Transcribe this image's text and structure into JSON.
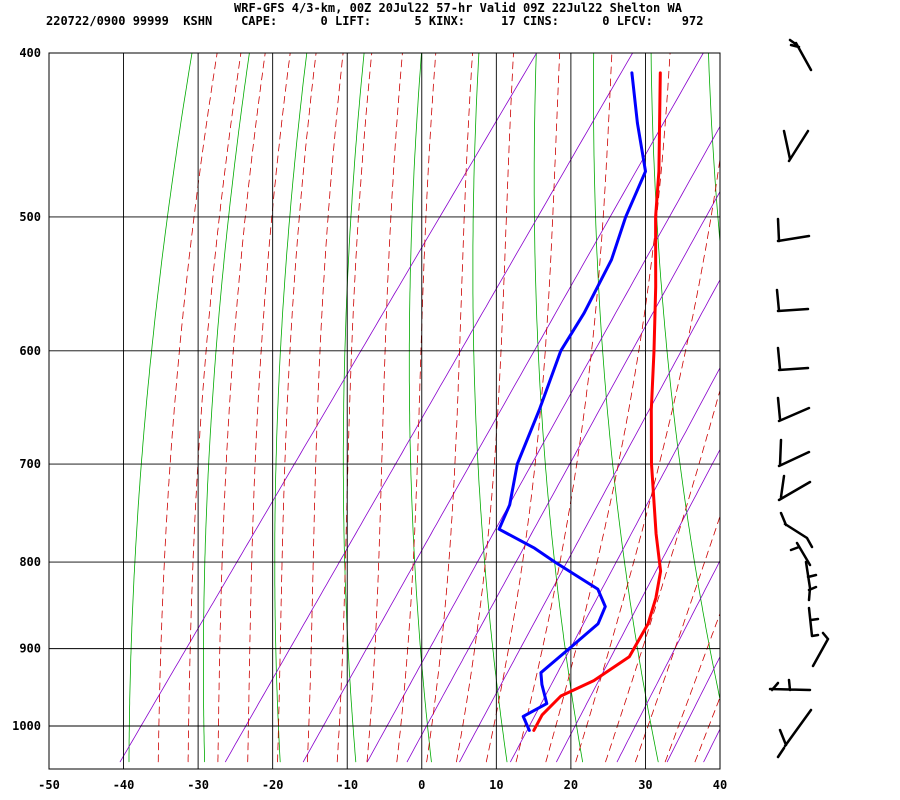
{
  "header": {
    "title": "WRF-GFS 4/3-km, 00Z 20Jul22 57-hr Valid 09Z 22Jul22 Shelton WA",
    "info": "220722/0900 99999  KSHN    CAPE:      0 LIFT:      5 KINX:     17 CINS:      0 LFCV:    972"
  },
  "chart_data": {
    "type": "line",
    "subtype": "skew-T log-P sounding",
    "title": "WRF-GFS 4/3-km, 00Z 20Jul22 57-hr Valid 09Z 22Jul22 Shelton WA",
    "station": "KSHN",
    "indices": {
      "CAPE": 0,
      "LIFT": 5,
      "KINX": 17,
      "CINS": 0,
      "LFCV": 972
    },
    "xlabel": "",
    "ylabel": "",
    "x_unit": "deg C",
    "y_unit": "hPa",
    "xlim": [
      -50,
      40
    ],
    "ylim": [
      1040,
      400
    ],
    "y_scale": "log (inverted)",
    "grid": true,
    "x_ticks": [
      "-50",
      "-40",
      "-30",
      "-20",
      "-10",
      "0",
      "10",
      "20",
      "30",
      "40"
    ],
    "y_ticks": [
      "400",
      "500",
      "600",
      "700",
      "800",
      "900",
      "1000"
    ],
    "colors": {
      "temperature": "#ff0000",
      "dewpoint": "#0000ff",
      "dry_adiabat": "#00aa00",
      "moist_adiabat": "#cc0000",
      "mixing_ratio": "#8800cc",
      "grid": "#000000"
    },
    "series": [
      {
        "key": "temperature",
        "color": "#ff0000",
        "points": [
          {
            "p": 1006,
            "t": 11.5
          },
          {
            "p": 985,
            "t": 11.2
          },
          {
            "p": 960,
            "t": 12.0
          },
          {
            "p": 940,
            "t": 15.0
          },
          {
            "p": 910,
            "t": 17.6
          },
          {
            "p": 870,
            "t": 17.1
          },
          {
            "p": 840,
            "t": 15.8
          },
          {
            "p": 810,
            "t": 14.0
          },
          {
            "p": 770,
            "t": 10.0
          },
          {
            "p": 700,
            "t": 3.0
          },
          {
            "p": 650,
            "t": -2.0
          },
          {
            "p": 600,
            "t": -7.0
          },
          {
            "p": 550,
            "t": -12.6
          },
          {
            "p": 500,
            "t": -19.0
          },
          {
            "p": 470,
            "t": -22.7
          },
          {
            "p": 411,
            "t": -31.5
          }
        ]
      },
      {
        "key": "dewpoint",
        "color": "#0000ff",
        "points": [
          {
            "p": 1006,
            "t": 10.9
          },
          {
            "p": 987,
            "t": 8.8
          },
          {
            "p": 970,
            "t": 10.8
          },
          {
            "p": 945,
            "t": 8.4
          },
          {
            "p": 930,
            "t": 7.2
          },
          {
            "p": 900,
            "t": 8.8
          },
          {
            "p": 870,
            "t": 10.4
          },
          {
            "p": 850,
            "t": 9.8
          },
          {
            "p": 830,
            "t": 7.2
          },
          {
            "p": 800,
            "t": -1.0
          },
          {
            "p": 785,
            "t": -5.0
          },
          {
            "p": 765,
            "t": -11.5
          },
          {
            "p": 740,
            "t": -12.3
          },
          {
            "p": 700,
            "t": -15.0
          },
          {
            "p": 650,
            "t": -17.0
          },
          {
            "p": 600,
            "t": -19.5
          },
          {
            "p": 570,
            "t": -19.8
          },
          {
            "p": 530,
            "t": -21.0
          },
          {
            "p": 500,
            "t": -23.0
          },
          {
            "p": 470,
            "t": -24.5
          },
          {
            "p": 440,
            "t": -30.0
          },
          {
            "p": 411,
            "t": -35.3
          }
        ]
      }
    ],
    "wind_barbs_count": 14
  }
}
